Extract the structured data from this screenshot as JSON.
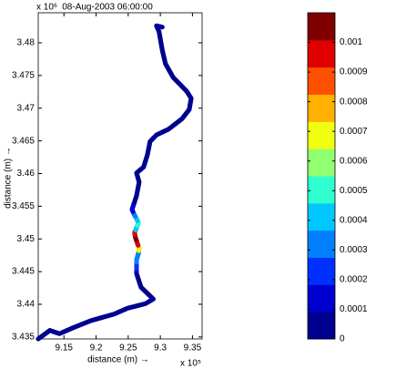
{
  "chart_data": {
    "type": "line",
    "title": "08-Aug-2003 06:00:00",
    "x_label": "distance (m) →",
    "y_label": "distance (m) →",
    "x_multiplier": "x 10⁵",
    "y_multiplier": "x 10⁶",
    "x": [
      9.11,
      9.128,
      9.143,
      9.164,
      9.192,
      9.228,
      9.249,
      9.277,
      9.289,
      9.27,
      9.263,
      9.263,
      9.263,
      9.266,
      9.267,
      9.264,
      9.261,
      9.26,
      9.263,
      9.266,
      9.263,
      9.259,
      9.256,
      9.263,
      9.267,
      9.263,
      9.274,
      9.28,
      9.284,
      9.294,
      9.313,
      9.334,
      9.345,
      9.348,
      9.341,
      9.32,
      9.308,
      9.303,
      9.298,
      9.294,
      9.303
    ],
    "y": [
      3.4347,
      3.436,
      3.4355,
      3.4364,
      3.4375,
      3.4385,
      3.4394,
      3.4401,
      3.4408,
      3.4426,
      3.4447,
      3.4461,
      3.4468,
      3.4478,
      3.4486,
      3.4494,
      3.4503,
      3.451,
      3.4517,
      3.4524,
      3.4531,
      3.4538,
      3.4545,
      3.4566,
      3.4587,
      3.4601,
      3.461,
      3.4629,
      3.4649,
      3.4659,
      3.4668,
      3.4684,
      3.4698,
      3.4715,
      3.4726,
      3.4747,
      3.4768,
      3.4789,
      3.4817,
      3.4826,
      3.4824
    ],
    "values": [
      0,
      0,
      0,
      0,
      0,
      0,
      0,
      0,
      0,
      0,
      0,
      0.0002,
      0.0003,
      0.0003,
      0.0007,
      0.001,
      0.00105,
      0.001,
      0.0004,
      0.0005,
      0.0004,
      0.0003,
      0.0001,
      0,
      0,
      0,
      0,
      0,
      0,
      0,
      0,
      0,
      0,
      0,
      0,
      0,
      0,
      0,
      0,
      0,
      0
    ],
    "xlim": [
      9.11,
      9.365
    ],
    "ylim": [
      3.4347,
      3.4846
    ],
    "xticks": [
      9.15,
      9.2,
      9.25,
      9.3,
      9.35
    ],
    "yticks": [
      3.435,
      3.44,
      3.445,
      3.45,
      3.455,
      3.46,
      3.465,
      3.47,
      3.475,
      3.48
    ],
    "clim": [
      0,
      0.0011
    ],
    "cticks": [
      0,
      0.0001,
      0.0002,
      0.0003,
      0.0004,
      0.0005,
      0.0006,
      0.0007,
      0.0008,
      0.0009,
      0.001
    ],
    "colormap": [
      "#00008f",
      "#0000d0",
      "#0030ff",
      "#0080ff",
      "#00c8ff",
      "#30ffd0",
      "#90ff70",
      "#f0ff10",
      "#ffb000",
      "#ff5000",
      "#e00000",
      "#800000"
    ],
    "line_color": "#00008f"
  }
}
